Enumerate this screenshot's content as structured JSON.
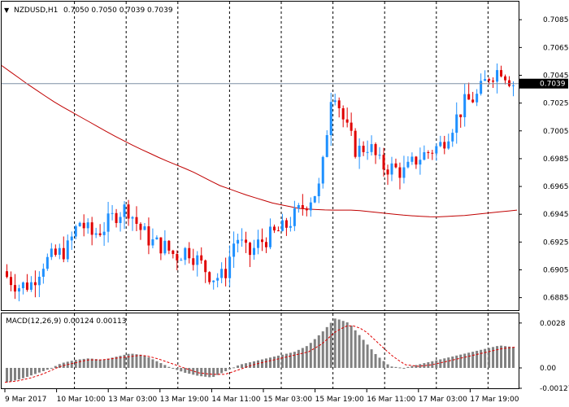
{
  "header": {
    "symbol_label": "NZDUSD,H1",
    "ohlc_label": "0.7050 0.7050 0.7039 0.7039"
  },
  "macd": {
    "label": "MACD(12,26,9) 0.00124 0.00113",
    "y_ticks": [
      "0.0028",
      "0.00",
      "-0.00127"
    ]
  },
  "colors": {
    "bull": "#1e90ff",
    "bear": "#e00000",
    "ma": "#c00000",
    "grid": "#000000",
    "hline": "#7f8fa6",
    "macd_hist": "#808080",
    "signal": "#e00000"
  },
  "chart_data": {
    "type": "candlestick",
    "symbol": "NZDUSD",
    "timeframe": "H1",
    "ylim": [
      0.6876,
      0.7098
    ],
    "y_ticks": [
      "0.7085",
      "0.7065",
      "0.7045",
      "0.7025",
      "0.7005",
      "0.6985",
      "0.6965",
      "0.6945",
      "0.6925",
      "0.6905",
      "0.6885"
    ],
    "x_ticks": [
      "9 Mar 2017",
      "10 Mar 10:00",
      "13 Mar 03:00",
      "13 Mar 19:00",
      "14 Mar 11:00",
      "15 Mar 03:00",
      "15 Mar 19:00",
      "16 Mar 11:00",
      "17 Mar 03:00",
      "17 Mar 19:00"
    ],
    "current_price": "0.7039",
    "grid": "vertical dashed",
    "moving_average_anchors": [
      0.7052,
      0.7038,
      0.7025,
      0.7014,
      0.7003,
      0.6993,
      0.6984,
      0.6976,
      0.6966,
      0.6959,
      0.6953,
      0.6949,
      0.6948,
      0.6948,
      0.6946,
      0.6944,
      0.6943,
      0.6944,
      0.6946,
      0.6948
    ],
    "close_anchors": [
      0.69,
      0.6893,
      0.6895,
      0.691,
      0.6915,
      0.692,
      0.694,
      0.693,
      0.6935,
      0.6945,
      0.695,
      0.6935,
      0.6925,
      0.6922,
      0.6915,
      0.692,
      0.691,
      0.69,
      0.69,
      0.693,
      0.6915,
      0.6925,
      0.693,
      0.6935,
      0.6945,
      0.6955,
      0.6965,
      0.704,
      0.701,
      0.699,
      0.6995,
      0.698,
      0.6978,
      0.6975,
      0.6985,
      0.699,
      0.6995,
      0.701,
      0.7025,
      0.703,
      0.7045,
      0.705,
      0.7039
    ],
    "macd_ylim": [
      -0.00127,
      0.0034
    ],
    "macd_anchors": [
      -0.0009,
      -0.0007,
      -0.0004,
      -0.0001,
      0.0003,
      0.0005,
      0.0006,
      0.0005,
      0.0007,
      0.0009,
      0.0008,
      0.0004,
      0.0,
      -0.0003,
      -0.0005,
      -0.0006,
      -0.0002,
      0.0002,
      0.0004,
      0.0006,
      0.0008,
      0.001,
      0.0014,
      0.0022,
      0.0031,
      0.0028,
      0.0018,
      0.0008,
      0.0001,
      0.0,
      0.0002,
      0.0004,
      0.0006,
      0.0008,
      0.001,
      0.0012,
      0.0014,
      0.0013
    ],
    "signal_anchors": [
      -0.0009,
      -0.0008,
      -0.0006,
      -0.0003,
      0.0001,
      0.0003,
      0.0005,
      0.0005,
      0.0006,
      0.0007,
      0.0008,
      0.0006,
      0.0003,
      0.0,
      -0.0003,
      -0.0004,
      -0.0004,
      -0.0001,
      0.0002,
      0.0004,
      0.0006,
      0.0008,
      0.001,
      0.0015,
      0.0023,
      0.0027,
      0.0024,
      0.0016,
      0.0008,
      0.0002,
      0.0001,
      0.0002,
      0.0004,
      0.0006,
      0.0008,
      0.001,
      0.0012,
      0.0013
    ]
  }
}
